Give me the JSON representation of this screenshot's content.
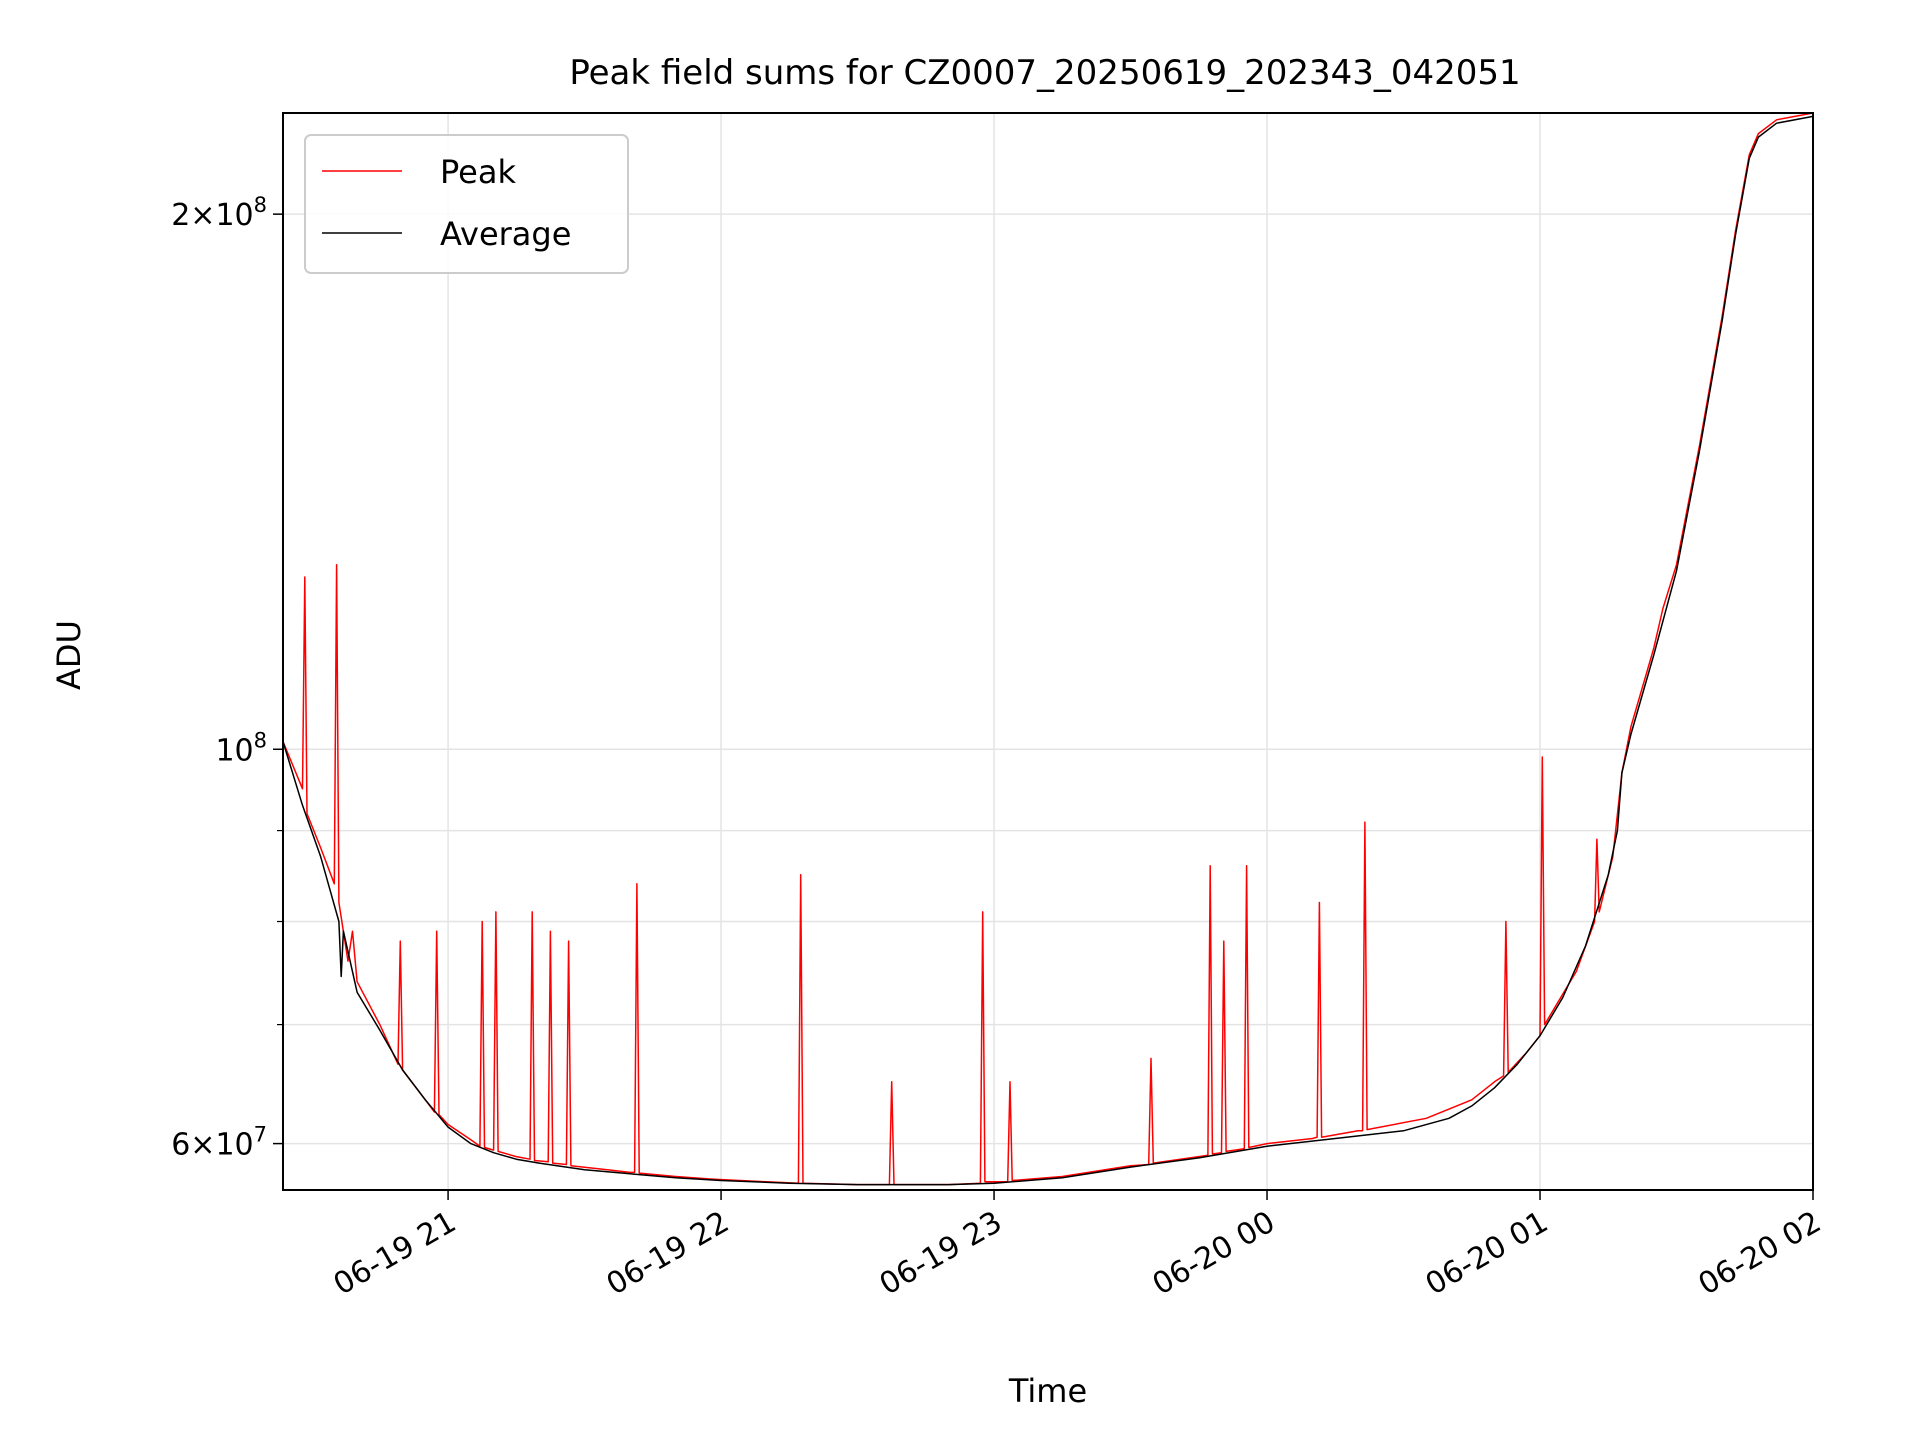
{
  "chart_data": {
    "type": "line",
    "title": "Peak field sums for CZ0007_20250619_202343_042051",
    "xlabel": "Time",
    "ylabel": "ADU",
    "x_tick_labels": [
      "06-19 21",
      "06-19 22",
      "06-19 23",
      "06-20 00",
      "06-20 01",
      "06-20 02"
    ],
    "x_tick_values": [
      "2025-06-19T21:00",
      "2025-06-19T22:00",
      "2025-06-19T23:00",
      "2025-06-20T00:00",
      "2025-06-20T01:00",
      "2025-06-20T02:00"
    ],
    "xlim": [
      "2025-06-19T20:23:43",
      "2025-06-20T02:00:00"
    ],
    "y_scale": "log",
    "ylim": [
      56500000,
      228000000
    ],
    "y_tick_values": [
      60000000,
      100000000,
      200000000
    ],
    "y_tick_labels": [
      {
        "mant": "6×10",
        "exp": "7"
      },
      {
        "mant": "10",
        "exp": "8"
      },
      {
        "mant": "2×10",
        "exp": "8"
      }
    ],
    "y_minor_ticks": [
      70000000,
      80000000,
      90000000
    ],
    "grid": true,
    "legend_position": "upper-left",
    "series": [
      {
        "name": "Peak",
        "color": "#ff0000",
        "points": [
          [
            "2025-06-19T20:23:43",
            101000000
          ],
          [
            "2025-06-19T20:28",
            95000000
          ],
          [
            "2025-06-19T20:28:30",
            125000000
          ],
          [
            "2025-06-19T20:29",
            92000000
          ],
          [
            "2025-06-19T20:32",
            88000000
          ],
          [
            "2025-06-19T20:35",
            84000000
          ],
          [
            "2025-06-19T20:35:30",
            127000000
          ],
          [
            "2025-06-19T20:36",
            82000000
          ],
          [
            "2025-06-19T20:38",
            76000000
          ],
          [
            "2025-06-19T20:39",
            79000000
          ],
          [
            "2025-06-19T20:40",
            74000000
          ],
          [
            "2025-06-19T20:45",
            70000000
          ],
          [
            "2025-06-19T20:49",
            66500000
          ],
          [
            "2025-06-19T20:49:30",
            78000000
          ],
          [
            "2025-06-19T20:50",
            66000000
          ],
          [
            "2025-06-19T20:55",
            63500000
          ],
          [
            "2025-06-19T20:57",
            62500000
          ],
          [
            "2025-06-19T20:57:30",
            79000000
          ],
          [
            "2025-06-19T20:58",
            62300000
          ],
          [
            "2025-06-19T21:00",
            61500000
          ],
          [
            "2025-06-19T21:05",
            60300000
          ],
          [
            "2025-06-19T21:07",
            59800000
          ],
          [
            "2025-06-19T21:07:30",
            80000000
          ],
          [
            "2025-06-19T21:08",
            59700000
          ],
          [
            "2025-06-19T21:10",
            59500000
          ],
          [
            "2025-06-19T21:10:30",
            81000000
          ],
          [
            "2025-06-19T21:11",
            59400000
          ],
          [
            "2025-06-19T21:15",
            59000000
          ],
          [
            "2025-06-19T21:18",
            58800000
          ],
          [
            "2025-06-19T21:18:30",
            81000000
          ],
          [
            "2025-06-19T21:19",
            58700000
          ],
          [
            "2025-06-19T21:22",
            58600000
          ],
          [
            "2025-06-19T21:22:30",
            79000000
          ],
          [
            "2025-06-19T21:23",
            58500000
          ],
          [
            "2025-06-19T21:26",
            58400000
          ],
          [
            "2025-06-19T21:26:30",
            78000000
          ],
          [
            "2025-06-19T21:27",
            58300000
          ],
          [
            "2025-06-19T21:35",
            58000000
          ],
          [
            "2025-06-19T21:40",
            57800000
          ],
          [
            "2025-06-19T21:41",
            57800000
          ],
          [
            "2025-06-19T21:41:30",
            84000000
          ],
          [
            "2025-06-19T21:42",
            57750000
          ],
          [
            "2025-06-19T21:50",
            57500000
          ],
          [
            "2025-06-19T21:58",
            57300000
          ],
          [
            "2025-06-19T22:10",
            57100000
          ],
          [
            "2025-06-19T22:17",
            57000000
          ],
          [
            "2025-06-19T22:17:30",
            85000000
          ],
          [
            "2025-06-19T22:18",
            57000000
          ],
          [
            "2025-06-19T22:30",
            56900000
          ],
          [
            "2025-06-19T22:37",
            56900000
          ],
          [
            "2025-06-19T22:37:30",
            65000000
          ],
          [
            "2025-06-19T22:38",
            56900000
          ],
          [
            "2025-06-19T22:50",
            56900000
          ],
          [
            "2025-06-19T22:57",
            57000000
          ],
          [
            "2025-06-19T22:57:30",
            81000000
          ],
          [
            "2025-06-19T22:58",
            57100000
          ],
          [
            "2025-06-19T23:02",
            57100000
          ],
          [
            "2025-06-19T23:03",
            57100000
          ],
          [
            "2025-06-19T23:03:30",
            65000000
          ],
          [
            "2025-06-19T23:04",
            57200000
          ],
          [
            "2025-06-19T23:15",
            57500000
          ],
          [
            "2025-06-19T23:30",
            58300000
          ],
          [
            "2025-06-19T23:34",
            58400000
          ],
          [
            "2025-06-19T23:34:30",
            67000000
          ],
          [
            "2025-06-19T23:35",
            58500000
          ],
          [
            "2025-06-19T23:45",
            59000000
          ],
          [
            "2025-06-19T23:47",
            59100000
          ],
          [
            "2025-06-19T23:47:30",
            86000000
          ],
          [
            "2025-06-19T23:48",
            59200000
          ],
          [
            "2025-06-19T23:50",
            59300000
          ],
          [
            "2025-06-19T23:50:30",
            78000000
          ],
          [
            "2025-06-19T23:51",
            59400000
          ],
          [
            "2025-06-19T23:55",
            59600000
          ],
          [
            "2025-06-19T23:55:30",
            86000000
          ],
          [
            "2025-06-19T23:56",
            59700000
          ],
          [
            "2025-06-20T00:00",
            60000000
          ],
          [
            "2025-06-20T00:10",
            60400000
          ],
          [
            "2025-06-20T00:11",
            60500000
          ],
          [
            "2025-06-20T00:11:30",
            82000000
          ],
          [
            "2025-06-20T00:12",
            60500000
          ],
          [
            "2025-06-20T00:20",
            61000000
          ],
          [
            "2025-06-20T00:21",
            61000000
          ],
          [
            "2025-06-20T00:21:30",
            91000000
          ],
          [
            "2025-06-20T00:22",
            61100000
          ],
          [
            "2025-06-20T00:35",
            62000000
          ],
          [
            "2025-06-20T00:45",
            63500000
          ],
          [
            "2025-06-20T00:50",
            65000000
          ],
          [
            "2025-06-20T00:52",
            65500000
          ],
          [
            "2025-06-20T00:52:30",
            80000000
          ],
          [
            "2025-06-20T00:53",
            65800000
          ],
          [
            "2025-06-20T00:57",
            67500000
          ],
          [
            "2025-06-20T01:00",
            69000000
          ],
          [
            "2025-06-20T01:00:30",
            99000000
          ],
          [
            "2025-06-20T01:01",
            70000000
          ],
          [
            "2025-06-20T01:08",
            75000000
          ],
          [
            "2025-06-20T01:12",
            80000000
          ],
          [
            "2025-06-20T01:12:30",
            89000000
          ],
          [
            "2025-06-20T01:13",
            81000000
          ],
          [
            "2025-06-20T01:16",
            87000000
          ],
          [
            "2025-06-20T01:18",
            97000000
          ],
          [
            "2025-06-20T01:20",
            103000000
          ],
          [
            "2025-06-20T01:25",
            114000000
          ],
          [
            "2025-06-20T01:27",
            120000000
          ],
          [
            "2025-06-20T01:30",
            127000000
          ],
          [
            "2025-06-20T01:35",
            148000000
          ],
          [
            "2025-06-20T01:40",
            175000000
          ],
          [
            "2025-06-20T01:43",
            196000000
          ],
          [
            "2025-06-20T01:46",
            216000000
          ],
          [
            "2025-06-20T01:48",
            222000000
          ],
          [
            "2025-06-20T01:52",
            226000000
          ],
          [
            "2025-06-20T02:00",
            228000000
          ]
        ]
      },
      {
        "name": "Average",
        "color": "#000000",
        "points": [
          [
            "2025-06-19T20:23:43",
            101000000
          ],
          [
            "2025-06-19T20:28",
            93000000
          ],
          [
            "2025-06-19T20:32",
            87000000
          ],
          [
            "2025-06-19T20:36",
            80000000
          ],
          [
            "2025-06-19T20:36:30",
            74500000
          ],
          [
            "2025-06-19T20:37",
            79000000
          ],
          [
            "2025-06-19T20:40",
            73000000
          ],
          [
            "2025-06-19T20:45",
            69500000
          ],
          [
            "2025-06-19T20:50",
            66000000
          ],
          [
            "2025-06-19T20:55",
            63500000
          ],
          [
            "2025-06-19T21:00",
            61300000
          ],
          [
            "2025-06-19T21:05",
            60000000
          ],
          [
            "2025-06-19T21:10",
            59300000
          ],
          [
            "2025-06-19T21:15",
            58800000
          ],
          [
            "2025-06-19T21:20",
            58500000
          ],
          [
            "2025-06-19T21:30",
            58000000
          ],
          [
            "2025-06-19T21:40",
            57700000
          ],
          [
            "2025-06-19T21:50",
            57400000
          ],
          [
            "2025-06-19T22:00",
            57200000
          ],
          [
            "2025-06-19T22:15",
            57000000
          ],
          [
            "2025-06-19T22:30",
            56900000
          ],
          [
            "2025-06-19T22:50",
            56900000
          ],
          [
            "2025-06-19T23:00",
            57000000
          ],
          [
            "2025-06-19T23:15",
            57400000
          ],
          [
            "2025-06-19T23:30",
            58200000
          ],
          [
            "2025-06-19T23:45",
            58900000
          ],
          [
            "2025-06-20T00:00",
            59800000
          ],
          [
            "2025-06-20T00:15",
            60400000
          ],
          [
            "2025-06-20T00:30",
            61000000
          ],
          [
            "2025-06-20T00:40",
            62000000
          ],
          [
            "2025-06-20T00:45",
            63000000
          ],
          [
            "2025-06-20T00:50",
            64500000
          ],
          [
            "2025-06-20T00:55",
            66500000
          ],
          [
            "2025-06-20T01:00",
            69000000
          ],
          [
            "2025-06-20T01:05",
            72500000
          ],
          [
            "2025-06-20T01:10",
            77500000
          ],
          [
            "2025-06-20T01:15",
            85000000
          ],
          [
            "2025-06-20T01:17",
            90000000
          ],
          [
            "2025-06-20T01:18",
            97000000
          ],
          [
            "2025-06-20T01:20",
            102000000
          ],
          [
            "2025-06-20T01:25",
            113000000
          ],
          [
            "2025-06-20T01:30",
            126000000
          ],
          [
            "2025-06-20T01:35",
            147000000
          ],
          [
            "2025-06-20T01:40",
            174000000
          ],
          [
            "2025-06-20T01:43",
            195000000
          ],
          [
            "2025-06-20T01:46",
            215000000
          ],
          [
            "2025-06-20T01:48",
            221000000
          ],
          [
            "2025-06-20T01:52",
            225000000
          ],
          [
            "2025-06-20T02:00",
            227000000
          ]
        ]
      }
    ]
  }
}
